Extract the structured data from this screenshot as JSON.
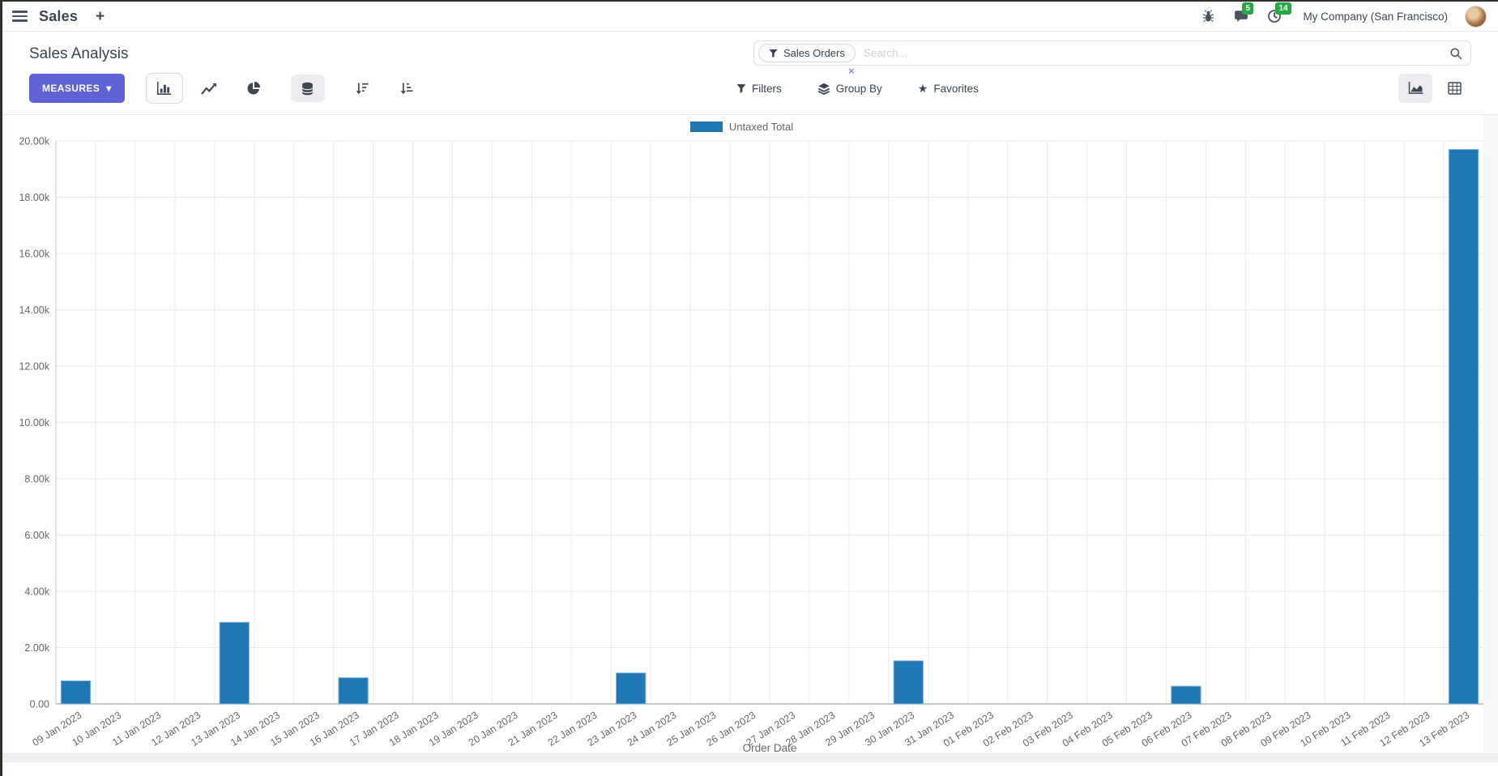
{
  "navbar": {
    "app_name": "Sales",
    "plus": "+",
    "messages_badge": "5",
    "activities_badge": "14",
    "company": "My Company (San Francisco)"
  },
  "control_panel": {
    "title": "Sales Analysis",
    "measures_label": "MEASURES",
    "measures_caret": "▾",
    "search": {
      "facet_label": "Sales Orders",
      "placeholder": "Search...",
      "remove_facet": "×"
    },
    "filters_label": "Filters",
    "group_by_label": "Group By",
    "favorites_label": "Favorites",
    "favorites_star": "★"
  },
  "chart_data": {
    "type": "bar",
    "title": "",
    "xlabel": "Order Date",
    "ylabel": "",
    "ylim": [
      0,
      20000
    ],
    "grid": true,
    "legend_position": "top-center",
    "yticks": [
      "0.00",
      "2.00k",
      "4.00k",
      "6.00k",
      "8.00k",
      "10.00k",
      "12.00k",
      "14.00k",
      "16.00k",
      "18.00k",
      "20.00k"
    ],
    "categories": [
      "09 Jan 2023",
      "10 Jan 2023",
      "11 Jan 2023",
      "12 Jan 2023",
      "13 Jan 2023",
      "14 Jan 2023",
      "15 Jan 2023",
      "16 Jan 2023",
      "17 Jan 2023",
      "18 Jan 2023",
      "19 Jan 2023",
      "20 Jan 2023",
      "21 Jan 2023",
      "22 Jan 2023",
      "23 Jan 2023",
      "24 Jan 2023",
      "25 Jan 2023",
      "26 Jan 2023",
      "27 Jan 2023",
      "28 Jan 2023",
      "29 Jan 2023",
      "30 Jan 2023",
      "31 Jan 2023",
      "01 Feb 2023",
      "02 Feb 2023",
      "03 Feb 2023",
      "04 Feb 2023",
      "05 Feb 2023",
      "06 Feb 2023",
      "07 Feb 2023",
      "08 Feb 2023",
      "09 Feb 2023",
      "10 Feb 2023",
      "11 Feb 2023",
      "12 Feb 2023",
      "13 Feb 2023"
    ],
    "series": [
      {
        "name": "Untaxed Total",
        "color": "#1f77b4",
        "values": [
          820,
          0,
          0,
          0,
          2900,
          0,
          0,
          930,
          0,
          0,
          0,
          0,
          0,
          0,
          1100,
          0,
          0,
          0,
          0,
          0,
          0,
          1530,
          0,
          0,
          0,
          0,
          0,
          0,
          630,
          0,
          0,
          0,
          0,
          0,
          0,
          19700
        ]
      }
    ]
  }
}
